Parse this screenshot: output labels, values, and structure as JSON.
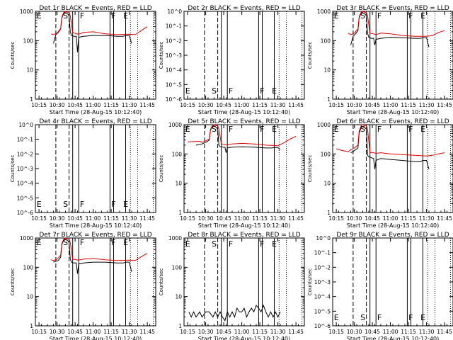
{
  "x_ticks": [
    "10:15",
    "10:30",
    "10:45",
    "11:00",
    "11:15",
    "11:30",
    "11:45"
  ],
  "y_ticks": [
    "1",
    "10",
    "100",
    "1000"
  ],
  "sparse_y_ticks": [
    "10^0",
    "10^-1",
    "10^-2",
    "10^-3",
    "10^-4",
    "10^-5",
    "10^-6"
  ],
  "xlabel": "Start Time (28-Aug-15 10:12:40)",
  "ylabel": "Counts/sec",
  "markers": {
    "e": "E",
    "s": "S",
    "f": "F"
  },
  "colors": {
    "events": "#000000",
    "lld": "#e00000"
  },
  "chart_data": [
    {
      "type": "line",
      "title": "Det 1r BLACK = Events, RED = LLD",
      "y_scale": "log",
      "ylim": [
        1,
        1000
      ],
      "series": [
        {
          "name": "Events",
          "color": "#000000",
          "x": [
            "10:27",
            "10:29",
            "10:31",
            "10:33",
            "10:34",
            "10:36",
            "10:37",
            "10:38",
            "10:39",
            "10:40",
            "10:41",
            "10:42",
            "10:44",
            "10:46",
            "10:47",
            "10:48",
            "10:52",
            "11:00",
            "11:10",
            "11:20",
            "11:25",
            "11:27",
            "11:30",
            "11:32"
          ],
          "y": [
            80,
            160,
            190,
            250,
            600,
            950,
            900,
            850,
            800,
            700,
            200,
            150,
            140,
            140,
            40,
            130,
            140,
            150,
            150,
            140,
            140,
            150,
            150,
            80
          ]
        },
        {
          "name": "LLD",
          "color": "#e00000",
          "x": [
            "10:25",
            "10:27",
            "10:30",
            "10:33",
            "10:34",
            "10:36",
            "10:38",
            "10:40",
            "10:41",
            "10:43",
            "10:46",
            "10:48",
            "10:52",
            "11:00",
            "11:10",
            "11:20",
            "11:30",
            "11:35",
            "11:40",
            "11:45"
          ],
          "y": [
            170,
            160,
            180,
            260,
            650,
            1000,
            950,
            900,
            700,
            190,
            170,
            165,
            190,
            200,
            170,
            160,
            165,
            160,
            220,
            300
          ]
        }
      ]
    },
    {
      "type": "line",
      "title": "Det 2r BLACK = Events, RED = LLD",
      "y_scale": "log",
      "ylim": [
        1e-06,
        1
      ],
      "series": []
    },
    {
      "type": "line",
      "title": "Det 3r BLACK = Events, RED = LLD",
      "y_scale": "log",
      "ylim": [
        1,
        1000
      ],
      "series": [
        {
          "name": "Events",
          "color": "#000000",
          "x": [
            "10:27",
            "10:29",
            "10:31",
            "10:33",
            "10:34",
            "10:36",
            "10:37",
            "10:38",
            "10:39",
            "10:40",
            "10:41",
            "10:42",
            "10:44",
            "10:46",
            "10:47",
            "10:48",
            "10:52",
            "11:00",
            "11:10",
            "11:20",
            "11:25",
            "11:27",
            "11:30",
            "11:32"
          ],
          "y": [
            70,
            140,
            170,
            220,
            600,
            950,
            900,
            850,
            800,
            700,
            180,
            130,
            120,
            120,
            70,
            110,
            120,
            130,
            125,
            120,
            120,
            125,
            125,
            60
          ]
        },
        {
          "name": "LLD",
          "color": "#e00000",
          "x": [
            "10:25",
            "10:27",
            "10:30",
            "10:33",
            "10:34",
            "10:36",
            "10:38",
            "10:40",
            "10:41",
            "10:43",
            "10:46",
            "10:48",
            "10:52",
            "11:00",
            "11:10",
            "11:20",
            "11:30",
            "11:35",
            "11:40",
            "11:45"
          ],
          "y": [
            180,
            160,
            180,
            250,
            650,
            1000,
            950,
            900,
            700,
            180,
            170,
            160,
            180,
            170,
            150,
            140,
            140,
            150,
            190,
            220
          ]
        }
      ]
    },
    {
      "type": "line",
      "title": "Det 4r BLACK = Events, RED = LLD",
      "y_scale": "log",
      "ylim": [
        1e-06,
        1
      ],
      "series": []
    },
    {
      "type": "line",
      "title": "Det 5r BLACK = Events, RED = LLD",
      "y_scale": "log",
      "ylim": [
        1,
        1000
      ],
      "series": [
        {
          "name": "Events",
          "color": "#000000",
          "x": [
            "10:22",
            "10:27",
            "10:29",
            "10:31",
            "10:33",
            "10:34",
            "10:36",
            "10:37",
            "10:38",
            "10:39",
            "10:40",
            "10:41",
            "10:42",
            "10:44",
            "10:46",
            "10:47",
            "10:48",
            "10:52",
            "11:00",
            "11:10",
            "11:20",
            "11:25",
            "11:27",
            "11:30",
            "11:32"
          ],
          "y": [
            200,
            220,
            240,
            260,
            300,
            650,
            950,
            900,
            850,
            800,
            700,
            200,
            180,
            170,
            170,
            110,
            160,
            170,
            175,
            170,
            160,
            160,
            165,
            165,
            140
          ]
        },
        {
          "name": "LLD",
          "color": "#e00000",
          "x": [
            "10:15",
            "10:25",
            "10:27",
            "10:30",
            "10:33",
            "10:34",
            "10:36",
            "10:38",
            "10:40",
            "10:41",
            "10:43",
            "10:46",
            "10:48",
            "10:52",
            "11:00",
            "11:10",
            "11:20",
            "11:30",
            "11:35",
            "11:40",
            "11:45"
          ],
          "y": [
            260,
            270,
            250,
            280,
            330,
            700,
            1000,
            950,
            900,
            700,
            220,
            210,
            200,
            220,
            230,
            220,
            200,
            190,
            240,
            320,
            400
          ]
        }
      ]
    },
    {
      "type": "line",
      "title": "Det 6r BLACK = Events, RED = LLD",
      "y_scale": "log",
      "ylim": [
        1,
        1000
      ],
      "series": [
        {
          "name": "Events",
          "color": "#000000",
          "x": [
            "10:27",
            "10:29",
            "10:31",
            "10:33",
            "10:34",
            "10:36",
            "10:37",
            "10:38",
            "10:39",
            "10:40",
            "10:41",
            "10:42",
            "10:44",
            "10:46",
            "10:47",
            "10:48",
            "10:52",
            "11:00",
            "11:10",
            "11:20",
            "11:25",
            "11:27",
            "11:30",
            "11:32"
          ],
          "y": [
            110,
            120,
            140,
            160,
            500,
            900,
            850,
            800,
            780,
            700,
            90,
            80,
            75,
            70,
            30,
            60,
            70,
            65,
            60,
            55,
            55,
            60,
            60,
            30
          ]
        },
        {
          "name": "LLD",
          "color": "#e00000",
          "x": [
            "10:15",
            "10:20",
            "10:25",
            "10:27",
            "10:30",
            "10:33",
            "10:34",
            "10:36",
            "10:38",
            "10:40",
            "10:41",
            "10:43",
            "10:46",
            "10:48",
            "10:52",
            "11:00",
            "11:10",
            "11:20",
            "11:30",
            "11:35",
            "11:40",
            "11:45"
          ],
          "y": [
            150,
            130,
            120,
            140,
            160,
            200,
            600,
            1000,
            950,
            900,
            700,
            110,
            110,
            105,
            110,
            100,
            95,
            90,
            85,
            90,
            100,
            110
          ]
        }
      ]
    },
    {
      "type": "line",
      "title": "Det 7r BLACK = Events, RED = LLD",
      "y_scale": "log",
      "ylim": [
        1,
        1000
      ],
      "series": [
        {
          "name": "Events",
          "color": "#000000",
          "x": [
            "10:27",
            "10:29",
            "10:31",
            "10:33",
            "10:34",
            "10:36",
            "10:37",
            "10:38",
            "10:39",
            "10:40",
            "10:41",
            "10:42",
            "10:44",
            "10:46",
            "10:47",
            "10:48",
            "10:52",
            "11:00",
            "11:10",
            "11:20",
            "11:25",
            "11:27",
            "11:30",
            "11:32"
          ],
          "y": [
            150,
            160,
            170,
            220,
            600,
            950,
            900,
            850,
            800,
            700,
            190,
            150,
            140,
            140,
            60,
            130,
            140,
            150,
            150,
            140,
            140,
            150,
            150,
            70
          ]
        },
        {
          "name": "LLD",
          "color": "#e00000",
          "x": [
            "10:25",
            "10:27",
            "10:30",
            "10:33",
            "10:34",
            "10:36",
            "10:38",
            "10:40",
            "10:41",
            "10:43",
            "10:46",
            "10:48",
            "10:52",
            "11:00",
            "11:10",
            "11:20",
            "11:30",
            "11:35",
            "11:40",
            "11:45"
          ],
          "y": [
            180,
            170,
            190,
            260,
            650,
            1000,
            950,
            900,
            700,
            190,
            180,
            175,
            190,
            200,
            180,
            170,
            175,
            170,
            230,
            300
          ]
        }
      ]
    },
    {
      "type": "line",
      "title": "Det 8r BLACK = Events, RED = LLD",
      "y_scale": "log",
      "ylim": [
        1,
        1000
      ],
      "series": [
        {
          "name": "Events",
          "color": "#000000",
          "x": [
            "10:16",
            "10:18",
            "10:20",
            "10:22",
            "10:25",
            "10:27",
            "10:30",
            "10:33",
            "10:36",
            "10:38",
            "10:40",
            "10:42",
            "10:44",
            "10:46",
            "10:48",
            "10:50",
            "10:52",
            "10:54",
            "10:56",
            "10:58",
            "11:00",
            "11:02",
            "11:04",
            "11:06",
            "11:08",
            "11:10",
            "11:12",
            "11:14",
            "11:16",
            "11:18",
            "11:20",
            "11:22",
            "11:24",
            "11:26",
            "11:28",
            "11:30",
            "11:32"
          ],
          "y": [
            3,
            2,
            3,
            2,
            3,
            2,
            3,
            3,
            2,
            3,
            2,
            3,
            2,
            1.5,
            3,
            2,
            3,
            2,
            4,
            3,
            3,
            4,
            2,
            3,
            4,
            3,
            5,
            4,
            3,
            5,
            3,
            2,
            3,
            2,
            3,
            2,
            3
          ]
        }
      ]
    },
    {
      "type": "line",
      "title": "Det 9r BLACK = Events, RED = LLD",
      "y_scale": "log",
      "ylim": [
        1e-06,
        1
      ],
      "series": []
    }
  ]
}
